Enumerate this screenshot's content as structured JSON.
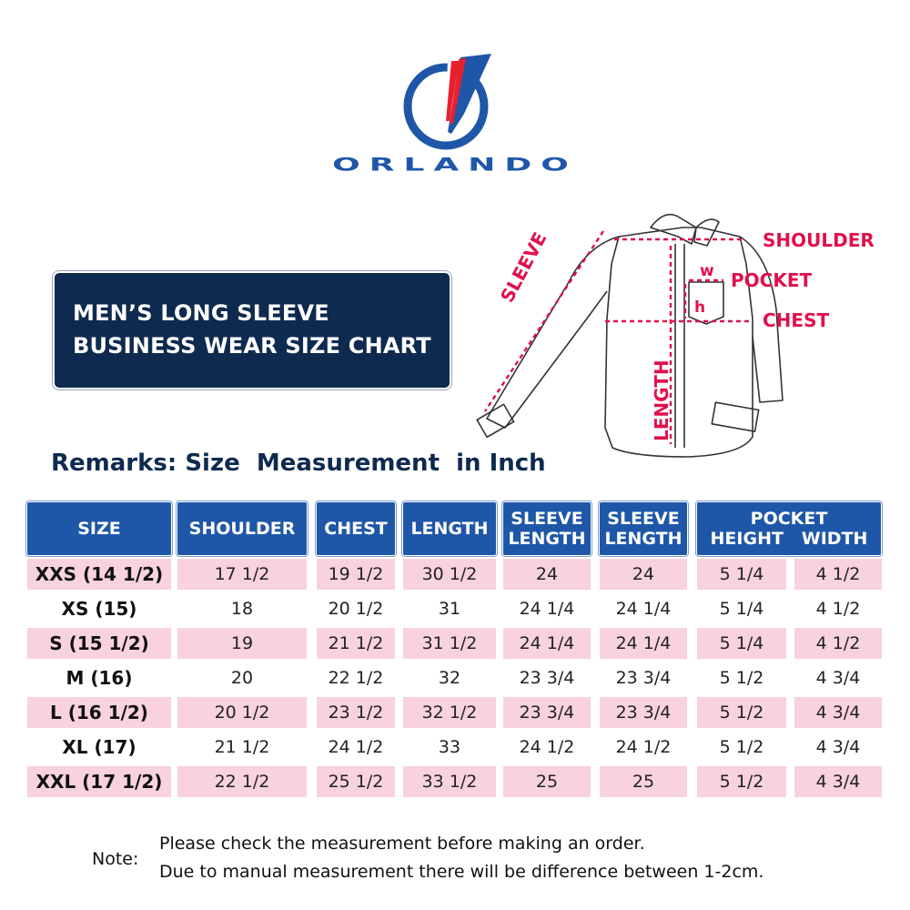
{
  "brand": {
    "name": "ORLANDO",
    "colors": {
      "blue": "#1f57a8",
      "red": "#e8202e",
      "navy": "#0e2a4f"
    }
  },
  "title": {
    "line1": "MEN’S LONG SLEEVE",
    "line2": "BUSINESS WEAR SIZE CHART"
  },
  "diagram": {
    "labels": {
      "shoulder": "SHOULDER",
      "pocket": "POCKET",
      "chest": "CHEST",
      "sleeve": "SLEEVE",
      "length": "LENGTH",
      "w": "w",
      "h": "h"
    },
    "accent": "#e0114a"
  },
  "remarks": "Remarks: Size  Measurement  in Inch",
  "table": {
    "headers": {
      "size": "SIZE",
      "shoulder": "SHOULDER",
      "chest": "CHEST",
      "length": "LENGTH",
      "sleeve_a_l1": "SLEEVE",
      "sleeve_a_l2": "LENGTH",
      "sleeve_b_l1": "SLEEVE",
      "sleeve_b_l2": "LENGTH",
      "pocket_l1": "POCKET",
      "pocket_l2": "HEIGHT   WIDTH"
    },
    "rows": [
      [
        "XXS (14 1/2)",
        "17 1/2",
        "19 1/2",
        "30 1/2",
        "24",
        "24",
        "5 1/4",
        "4 1/2"
      ],
      [
        "XS (15)",
        "18",
        "20 1/2",
        "31",
        "24 1/4",
        "24 1/4",
        "5 1/4",
        "4 1/2"
      ],
      [
        "S (15 1/2)",
        "19",
        "21 1/2",
        "31 1/2",
        "24 1/4",
        "24 1/4",
        "5 1/4",
        "4 1/2"
      ],
      [
        "M (16)",
        "20",
        "22 1/2",
        "32",
        "23 3/4",
        "23 3/4",
        "5 1/2",
        "4 3/4"
      ],
      [
        "L (16 1/2)",
        "20 1/2",
        "23 1/2",
        "32 1/2",
        "23 3/4",
        "23 3/4",
        "5 1/2",
        "4 3/4"
      ],
      [
        "XL (17)",
        "21 1/2",
        "24 1/2",
        "33",
        "24 1/2",
        "24 1/2",
        "5 1/2",
        "4 3/4"
      ],
      [
        "XXL (17 1/2)",
        "22 1/2",
        "25 1/2",
        "33 1/2",
        "25",
        "25",
        "5 1/2",
        "4 3/4"
      ]
    ]
  },
  "note": {
    "label": "Note:",
    "line1": "Please check the measurement before making an order.",
    "line2": "Due to manual measurement there will be difference between 1-2cm."
  }
}
